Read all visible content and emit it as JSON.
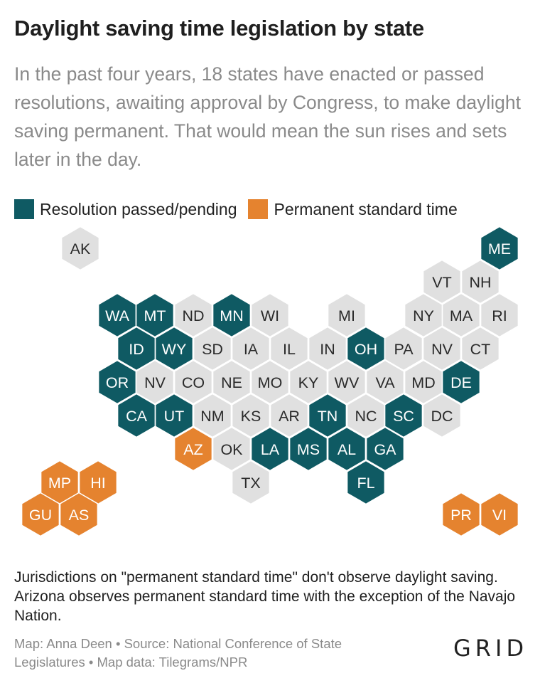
{
  "title": "Daylight saving time legislation by state",
  "subtitle": "In the past four years, 18 states have enacted or passed resolutions, awaiting approval by Congress, to make daylight saving permanent. That would mean the sun rises and sets later in the day.",
  "colors": {
    "resolution": "#0f5a63",
    "standard": "#e5832f",
    "none": "#e0e0e0"
  },
  "legend": [
    {
      "key": "resolution",
      "label": "Resolution passed/pending"
    },
    {
      "key": "standard",
      "label": "Permanent standard time"
    }
  ],
  "map": {
    "states": [
      {
        "abbr": "AK",
        "status": "none"
      },
      {
        "abbr": "ME",
        "status": "resolution"
      },
      {
        "abbr": "VT",
        "status": "none"
      },
      {
        "abbr": "NH",
        "status": "none"
      },
      {
        "abbr": "WA",
        "status": "resolution"
      },
      {
        "abbr": "MT",
        "status": "resolution"
      },
      {
        "abbr": "ND",
        "status": "none"
      },
      {
        "abbr": "MN",
        "status": "resolution"
      },
      {
        "abbr": "WI",
        "status": "none"
      },
      {
        "abbr": "MI",
        "status": "none"
      },
      {
        "abbr": "NY",
        "status": "none"
      },
      {
        "abbr": "MA",
        "status": "none"
      },
      {
        "abbr": "RI",
        "status": "none"
      },
      {
        "abbr": "ID",
        "status": "resolution"
      },
      {
        "abbr": "WY",
        "status": "resolution"
      },
      {
        "abbr": "SD",
        "status": "none"
      },
      {
        "abbr": "IA",
        "status": "none"
      },
      {
        "abbr": "IL",
        "status": "none"
      },
      {
        "abbr": "IN",
        "status": "none"
      },
      {
        "abbr": "OH",
        "status": "resolution"
      },
      {
        "abbr": "PA",
        "status": "none"
      },
      {
        "abbr": "NV",
        "status": "none"
      },
      {
        "abbr": "CT",
        "status": "none"
      },
      {
        "abbr": "OR",
        "status": "resolution"
      },
      {
        "abbr": "NV",
        "status": "none"
      },
      {
        "abbr": "CO",
        "status": "none"
      },
      {
        "abbr": "NE",
        "status": "none"
      },
      {
        "abbr": "MO",
        "status": "none"
      },
      {
        "abbr": "KY",
        "status": "none"
      },
      {
        "abbr": "WV",
        "status": "none"
      },
      {
        "abbr": "VA",
        "status": "none"
      },
      {
        "abbr": "MD",
        "status": "none"
      },
      {
        "abbr": "DE",
        "status": "resolution"
      },
      {
        "abbr": "CA",
        "status": "resolution"
      },
      {
        "abbr": "UT",
        "status": "resolution"
      },
      {
        "abbr": "NM",
        "status": "none"
      },
      {
        "abbr": "KS",
        "status": "none"
      },
      {
        "abbr": "AR",
        "status": "none"
      },
      {
        "abbr": "TN",
        "status": "resolution"
      },
      {
        "abbr": "NC",
        "status": "none"
      },
      {
        "abbr": "SC",
        "status": "resolution"
      },
      {
        "abbr": "DC",
        "status": "none"
      },
      {
        "abbr": "AZ",
        "status": "standard"
      },
      {
        "abbr": "OK",
        "status": "none"
      },
      {
        "abbr": "LA",
        "status": "resolution"
      },
      {
        "abbr": "MS",
        "status": "resolution"
      },
      {
        "abbr": "AL",
        "status": "resolution"
      },
      {
        "abbr": "GA",
        "status": "resolution"
      },
      {
        "abbr": "TX",
        "status": "none"
      },
      {
        "abbr": "FL",
        "status": "resolution"
      },
      {
        "abbr": "MP",
        "status": "standard"
      },
      {
        "abbr": "HI",
        "status": "standard"
      },
      {
        "abbr": "GU",
        "status": "standard"
      },
      {
        "abbr": "AS",
        "status": "standard"
      },
      {
        "abbr": "PR",
        "status": "standard"
      },
      {
        "abbr": "VI",
        "status": "standard"
      }
    ]
  },
  "note": "Jurisdictions on \"permanent standard time\" don't observe daylight saving. Arizona observes permanent standard time with the exception of the Navajo Nation.",
  "credit": "Map: Anna Deen • Source: National Conference of State Legislatures • Map data: Tilegrams/NPR",
  "logo": "GRID"
}
